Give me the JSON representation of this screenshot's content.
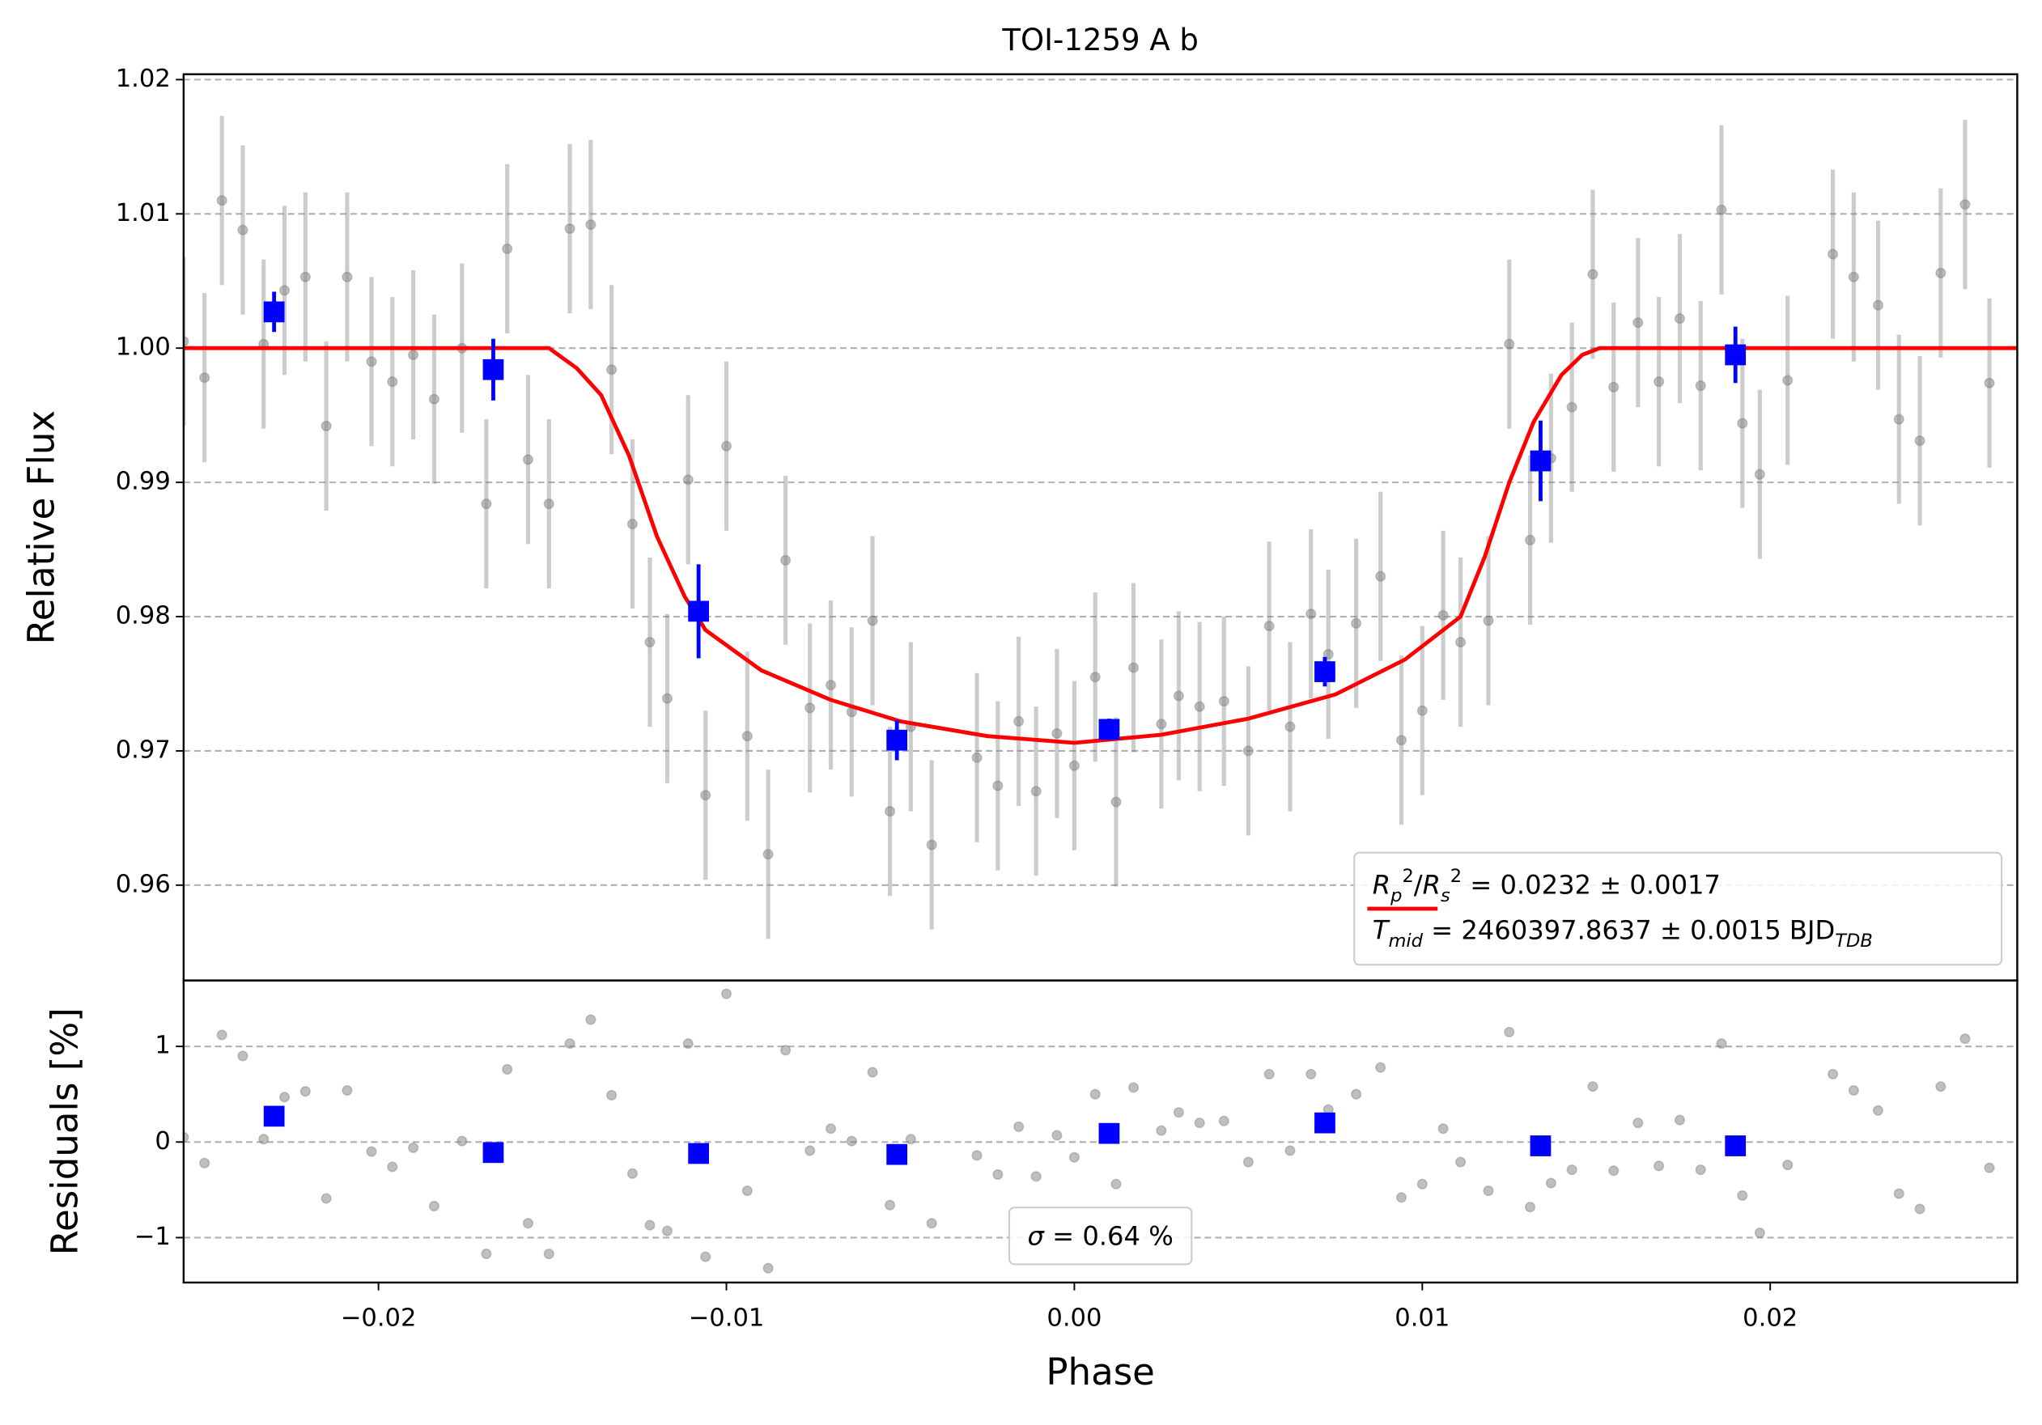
{
  "chart_data": [
    {
      "type": "scatter",
      "title": "TOI-1259 A b",
      "ylabel": "Relative Flux",
      "xlim": [
        -0.0256,
        0.0271
      ],
      "ylim": [
        0.9529,
        1.0204
      ],
      "yticks": [
        0.96,
        0.97,
        0.98,
        0.99,
        {
          "value": 1.0,
          "label": "1.00"
        },
        1.01,
        1.02
      ],
      "grid": true,
      "series": [
        {
          "color": "#808080",
          "marker": "circle",
          "error": 0.0063,
          "x": [
            -0.0256,
            -0.025,
            -0.0245,
            -0.0239,
            -0.0233,
            -0.0227,
            -0.0221,
            -0.0215,
            -0.0209,
            -0.0202,
            -0.0196,
            -0.019,
            -0.0184,
            -0.0176,
            -0.0169,
            -0.0163,
            -0.0157,
            -0.0151,
            -0.0145,
            -0.0139,
            -0.0133,
            -0.0127,
            -0.0122,
            -0.0117,
            -0.0111,
            -0.0106,
            -0.01,
            -0.0094,
            -0.0088,
            -0.0083,
            -0.0076,
            -0.007,
            -0.0064,
            -0.0058,
            -0.0053,
            -0.0047,
            -0.0041,
            -0.0028,
            -0.0022,
            -0.0016,
            -0.0011,
            -0.0005,
            0.0,
            0.0006,
            0.0012,
            0.0017,
            0.0025,
            0.003,
            0.0036,
            0.0043,
            0.005,
            0.0056,
            0.0062,
            0.0068,
            0.0073,
            0.0081,
            0.0088,
            0.0094,
            0.01,
            0.0106,
            0.0111,
            0.0119,
            0.0125,
            0.0131,
            0.0137,
            0.0143,
            0.0149,
            0.0155,
            0.0162,
            0.0168,
            0.0174,
            0.018,
            0.0186,
            0.0192,
            0.0197,
            0.0205,
            0.0218,
            0.0224,
            0.0231,
            0.0237,
            0.0243,
            0.0249,
            0.0256,
            0.0263
          ],
          "values": [
            1.0005,
            0.9978,
            1.011,
            1.0088,
            1.0003,
            1.0043,
            1.0053,
            0.9942,
            1.0053,
            0.999,
            0.9975,
            0.9995,
            0.9962,
            1.0,
            0.9884,
            1.0074,
            0.9917,
            0.9884,
            1.0089,
            1.0092,
            0.9984,
            0.9869,
            0.9781,
            0.9739,
            0.9902,
            0.9667,
            0.9927,
            0.9711,
            0.9623,
            0.9842,
            0.9732,
            0.9749,
            0.9729,
            0.9797,
            0.9655,
            0.9718,
            0.963,
            0.9695,
            0.9674,
            0.9722,
            0.967,
            0.9713,
            0.9689,
            0.9755,
            0.9662,
            0.9762,
            0.972,
            0.9741,
            0.9733,
            0.9737,
            0.97,
            0.9793,
            0.9718,
            0.9802,
            0.9772,
            0.9795,
            0.983,
            0.9708,
            0.973,
            0.9801,
            0.9781,
            0.9797,
            1.0003,
            0.9857,
            0.9918,
            0.9956,
            1.0055,
            0.9971,
            1.0019,
            0.9975,
            1.0022,
            0.9972,
            1.0103,
            0.9944,
            0.9906,
            0.9976,
            1.007,
            1.0053,
            1.0032,
            0.9947,
            0.9931,
            1.0056,
            1.0107,
            0.9974
          ]
        },
        {
          "color": "#0000ff",
          "marker": "square",
          "x": [
            -0.023,
            -0.0167,
            -0.0108,
            -0.0051,
            0.001,
            0.0072,
            0.0134,
            0.019
          ],
          "values": [
            1.0027,
            0.9984,
            0.9804,
            0.9708,
            0.9716,
            0.9759,
            0.9916,
            0.9995
          ],
          "errors": [
            0.0015,
            0.0023,
            0.0035,
            0.0015,
            0.0008,
            0.0011,
            0.003,
            0.0021
          ]
        }
      ],
      "model": {
        "color": "#ff0000",
        "x": [
          -0.0256,
          -0.0151,
          -0.0143,
          -0.0136,
          -0.0128,
          -0.012,
          -0.0112,
          -0.0106,
          -0.009,
          -0.007,
          -0.005,
          -0.0025,
          0.0,
          0.0025,
          0.005,
          0.0075,
          0.0095,
          0.0111,
          0.0118,
          0.0125,
          0.0132,
          0.014,
          0.0146,
          0.0151,
          0.0271
        ],
        "values": [
          1.0,
          1.0,
          0.9985,
          0.9965,
          0.992,
          0.986,
          0.9815,
          0.979,
          0.976,
          0.9738,
          0.9722,
          0.9711,
          0.9706,
          0.9712,
          0.9724,
          0.9742,
          0.9768,
          0.98,
          0.9845,
          0.99,
          0.9945,
          0.998,
          0.9995,
          1.0,
          1.0
        ]
      },
      "legend": {
        "loc": "lower right",
        "handle": "line",
        "lines": [
          [
            [
              "R",
              "i"
            ],
            [
              "p",
              "sub"
            ],
            [
              "2",
              "sup"
            ],
            [
              "/",
              ""
            ],
            [
              "R",
              "i"
            ],
            [
              "s",
              "sub"
            ],
            [
              "2",
              "sup"
            ],
            [
              " = 0.0232 ± 0.0017",
              ""
            ]
          ],
          [
            [
              "T",
              "i"
            ],
            [
              "mid",
              "sub"
            ],
            [
              " = 2460397.8637 ± 0.0015 BJD",
              ""
            ],
            [
              "TDB",
              "sub"
            ]
          ]
        ]
      }
    },
    {
      "type": "scatter",
      "ylabel": "Residuals [%]",
      "xlabel": "Phase",
      "xlim": [
        -0.0256,
        0.0271
      ],
      "ylim": [
        -1.47,
        1.69
      ],
      "xticks": [
        {
          "value": -0.02,
          "label": "−0.02"
        },
        {
          "value": -0.01,
          "label": "−0.01"
        },
        {
          "value": 0,
          "label": "0.00"
        },
        0.01,
        0.02
      ],
      "yticks": [
        {
          "value": -1,
          "label": "−1"
        },
        0,
        1
      ],
      "grid": true,
      "series": [
        {
          "color": "#808080",
          "marker": "circle",
          "x": [
            -0.0256,
            -0.025,
            -0.0245,
            -0.0239,
            -0.0233,
            -0.0227,
            -0.0221,
            -0.0215,
            -0.0209,
            -0.0202,
            -0.0196,
            -0.019,
            -0.0184,
            -0.0176,
            -0.0169,
            -0.0163,
            -0.0157,
            -0.0151,
            -0.0145,
            -0.0139,
            -0.0133,
            -0.0127,
            -0.0122,
            -0.0117,
            -0.0111,
            -0.0106,
            -0.01,
            -0.0094,
            -0.0088,
            -0.0083,
            -0.0076,
            -0.007,
            -0.0064,
            -0.0058,
            -0.0053,
            -0.0047,
            -0.0041,
            -0.0028,
            -0.0022,
            -0.0016,
            -0.0011,
            -0.0005,
            0.0,
            0.0006,
            0.0012,
            0.0017,
            0.0025,
            0.003,
            0.0036,
            0.0043,
            0.005,
            0.0056,
            0.0062,
            0.0068,
            0.0073,
            0.0081,
            0.0088,
            0.0094,
            0.01,
            0.0106,
            0.0111,
            0.0119,
            0.0125,
            0.0131,
            0.0137,
            0.0143,
            0.0149,
            0.0155,
            0.0162,
            0.0168,
            0.0174,
            0.018,
            0.0186,
            0.0192,
            0.0197,
            0.0205,
            0.0218,
            0.0224,
            0.0231,
            0.0237,
            0.0243,
            0.0249,
            0.0256,
            0.0263
          ],
          "values": [
            0.05,
            -0.22,
            1.12,
            0.9,
            0.03,
            0.47,
            0.53,
            -0.59,
            0.54,
            -0.1,
            -0.26,
            -0.06,
            -0.67,
            0.01,
            -1.17,
            0.76,
            -0.85,
            -1.17,
            1.03,
            1.28,
            0.49,
            -0.33,
            -0.87,
            -0.93,
            1.03,
            -1.2,
            1.55,
            -0.51,
            -1.32,
            0.96,
            -0.09,
            0.14,
            0.01,
            0.73,
            -0.66,
            0.03,
            -0.85,
            -0.14,
            -0.34,
            0.16,
            -0.36,
            0.07,
            -0.16,
            0.5,
            -0.44,
            0.57,
            0.12,
            0.31,
            0.2,
            0.22,
            -0.21,
            0.71,
            -0.09,
            0.71,
            0.34,
            0.5,
            0.78,
            -0.58,
            -0.44,
            0.14,
            -0.21,
            -0.51,
            1.15,
            -0.68,
            -0.43,
            -0.29,
            0.58,
            -0.3,
            0.2,
            -0.25,
            0.23,
            -0.29,
            1.03,
            -0.56,
            -0.95,
            -0.24,
            0.71,
            0.54,
            0.33,
            -0.54,
            -0.7,
            0.58,
            1.08,
            -0.27
          ]
        },
        {
          "color": "#0000ff",
          "marker": "square",
          "x": [
            -0.023,
            -0.0167,
            -0.0108,
            -0.0051,
            0.001,
            0.0072,
            0.0134,
            0.019
          ],
          "values": [
            0.27,
            -0.11,
            -0.12,
            -0.13,
            0.09,
            0.2,
            -0.04,
            -0.04
          ]
        }
      ],
      "legend": {
        "loc": "lower center",
        "handle": "none",
        "lines": [
          [
            [
              "σ",
              "i"
            ],
            [
              " = 0.64 %",
              ""
            ]
          ]
        ]
      }
    }
  ]
}
